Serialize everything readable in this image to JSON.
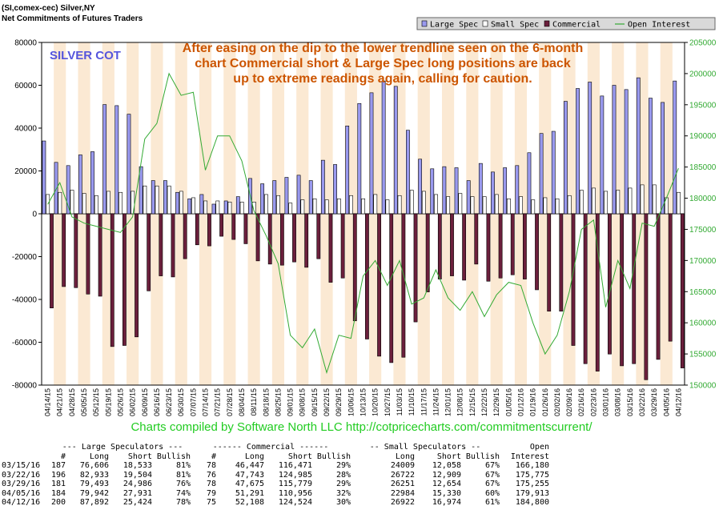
{
  "header": {
    "line1": "(SI,comex-cec) Silver,NY",
    "line2": "Net Commitments of Futures Traders"
  },
  "chart_data": {
    "type": "bar",
    "title": "SILVER COT",
    "annotation": [
      "After easing on the dip to the lower trendline seen on the 6-month",
      "chart Commercial short & Large Spec long positions are back",
      "up to extreme readings again, calling for caution."
    ],
    "legend_position": "top-right",
    "colors": {
      "large_spec": "#9999ee",
      "small_spec": "#ffffff",
      "commercial": "#6b1f3c",
      "open_interest": "#33aa33",
      "band": "#fbe9d3",
      "annotation": "#cc5500",
      "title": "#5555dd"
    },
    "y_left": {
      "min": -80000,
      "max": 80000,
      "step": 20000,
      "ticks": [
        "80000",
        "60000",
        "40000",
        "20000",
        "0",
        "-20000",
        "-40000",
        "-60000",
        "-80000"
      ]
    },
    "y_right": {
      "min": 150000,
      "max": 205000,
      "step": 5000,
      "ticks": [
        "205000",
        "200000",
        "195000",
        "190000",
        "185000",
        "180000",
        "175000",
        "170000",
        "165000",
        "160000",
        "155000",
        "150000"
      ]
    },
    "categories": [
      "04/14/15",
      "04/21/15",
      "04/28/15",
      "05/05/15",
      "05/12/15",
      "05/19/15",
      "05/26/15",
      "06/02/15",
      "06/09/15",
      "06/16/15",
      "06/23/15",
      "06/30/15",
      "07/07/15",
      "07/14/15",
      "07/21/15",
      "07/28/15",
      "08/04/15",
      "08/11/15",
      "08/18/15",
      "08/25/15",
      "09/01/15",
      "09/08/15",
      "09/15/15",
      "09/22/15",
      "09/29/15",
      "10/06/15",
      "10/13/15",
      "10/20/15",
      "10/27/15",
      "11/03/15",
      "11/10/15",
      "11/17/15",
      "11/24/15",
      "12/01/15",
      "12/08/15",
      "12/15/15",
      "12/22/15",
      "12/29/15",
      "01/05/16",
      "01/12/16",
      "01/19/16",
      "01/26/16",
      "02/02/16",
      "02/09/16",
      "02/16/16",
      "02/23/16",
      "03/01/16",
      "03/08/16",
      "03/15/16",
      "03/22/16",
      "03/29/16",
      "04/05/16",
      "04/12/16"
    ],
    "series": [
      {
        "name": "Large Spec",
        "values": [
          34000,
          24000,
          22500,
          27500,
          29000,
          51000,
          50500,
          46500,
          22000,
          15500,
          15500,
          10000,
          7000,
          9000,
          4500,
          6000,
          8000,
          16500,
          14000,
          15500,
          17000,
          18000,
          15500,
          25000,
          23000,
          41000,
          51500,
          56500,
          62000,
          59500,
          39000,
          25500,
          21000,
          22000,
          21500,
          15500,
          23500,
          19500,
          21500,
          22500,
          28500,
          37500,
          38500,
          52500,
          58500,
          61500,
          55000,
          60000,
          58000,
          63500,
          54000,
          52000,
          62000
        ]
      },
      {
        "name": "Small Spec",
        "values": [
          9000,
          10000,
          11000,
          9500,
          8500,
          10500,
          10000,
          10500,
          13000,
          13000,
          13000,
          10500,
          7500,
          6000,
          6000,
          5500,
          5500,
          5500,
          9000,
          8500,
          5000,
          6500,
          7000,
          6500,
          7000,
          8500,
          7000,
          9000,
          6500,
          8500,
          11000,
          10500,
          9000,
          8000,
          9500,
          8000,
          8000,
          9000,
          7000,
          8000,
          6500,
          7500,
          7000,
          8500,
          11000,
          12000,
          10500,
          11000,
          12000,
          13500,
          13500,
          7500,
          10000
        ]
      },
      {
        "name": "Commercial",
        "values": [
          -44000,
          -34000,
          -34500,
          -37500,
          -38500,
          -62000,
          -61500,
          -57500,
          -36000,
          -29000,
          -29500,
          -21000,
          -14500,
          -15000,
          -10500,
          -12000,
          -14000,
          -22000,
          -23500,
          -24000,
          -22500,
          -25000,
          -21000,
          -32000,
          -30000,
          -50000,
          -58500,
          -66500,
          -69500,
          -67000,
          -50500,
          -36500,
          -30500,
          -29000,
          -31000,
          -23500,
          -31500,
          -30000,
          -28500,
          -30500,
          -35500,
          -45500,
          -45500,
          -61500,
          -70000,
          -73500,
          -65500,
          -71000,
          -70000,
          -77500,
          -68000,
          -59500,
          -72000
        ]
      },
      {
        "name": "Open Interest",
        "values": [
          179000,
          182500,
          177000,
          176000,
          175500,
          175000,
          174500,
          177000,
          189500,
          192000,
          200000,
          196500,
          197000,
          184500,
          190000,
          190000,
          186000,
          178000,
          174000,
          169500,
          158000,
          156000,
          159000,
          152000,
          158000,
          157500,
          167500,
          170000,
          166000,
          170000,
          163000,
          164000,
          168500,
          164000,
          162000,
          165000,
          161000,
          164500,
          166500,
          166000,
          160000,
          155000,
          158000,
          165000,
          175000,
          176500,
          162500,
          170000,
          165500,
          176000,
          175500,
          180000,
          184800
        ]
      }
    ]
  },
  "credit": "Charts compiled by Software North LLC  http://cotpricecharts.com/commitmentscurrent/",
  "table": {
    "group_headers": [
      "--- Large Speculators ---",
      "------ Commercial ------",
      "-- Small Speculators --",
      "Open"
    ],
    "col_headers": [
      "#",
      "Long",
      "Short",
      "Bullish",
      "#",
      "Long",
      "Short",
      "Bullish",
      "Long",
      "Short",
      "Bullish",
      "Interest"
    ],
    "rows": [
      [
        "03/15/16",
        "187",
        "76,606",
        "18,533",
        "81%",
        "78",
        "46,447",
        "116,471",
        "29%",
        "24009",
        "12,058",
        "67%",
        "166,180"
      ],
      [
        "03/22/16",
        "196",
        "82,933",
        "19,504",
        "81%",
        "76",
        "47,743",
        "124,985",
        "28%",
        "26722",
        "12,909",
        "67%",
        "175,775"
      ],
      [
        "03/29/16",
        "181",
        "79,493",
        "24,986",
        "76%",
        "78",
        "47,675",
        "115,779",
        "29%",
        "26251",
        "12,654",
        "67%",
        "175,255"
      ],
      [
        "04/05/16",
        "184",
        "79,942",
        "27,931",
        "74%",
        "79",
        "51,291",
        "110,956",
        "32%",
        "22984",
        "15,330",
        "60%",
        "179,913"
      ],
      [
        "04/12/16",
        "200",
        "87,892",
        "25,424",
        "78%",
        "75",
        "52,108",
        "124,524",
        "30%",
        "26922",
        "16,974",
        "61%",
        "184,800"
      ]
    ]
  }
}
